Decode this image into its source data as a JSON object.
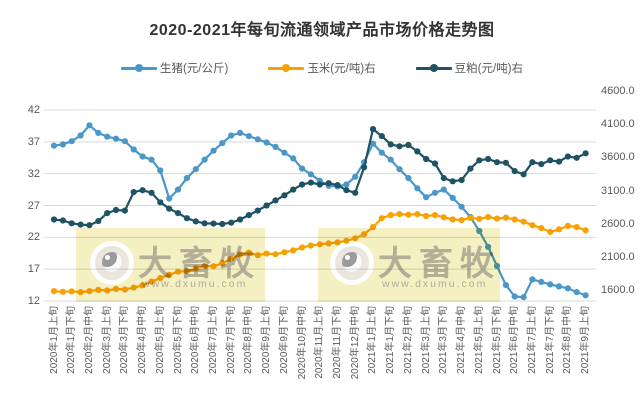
{
  "title": "2020-2021年每旬流通领域产品市场价格走势图",
  "watermark": {
    "text": "大畜牧",
    "url": "www.dxumu.com"
  },
  "chart_data": {
    "type": "line",
    "title": "2020-2021年每旬流通领域产品市场价格走势图",
    "grid": true,
    "legend_position": "top",
    "points_per_label": 2,
    "x_tick_labels": [
      "2020年1月上旬",
      "2020年1月下旬",
      "2020年2月中旬",
      "2020年3月上旬",
      "2020年3月下旬",
      "2020年4月中旬",
      "2020年5月上旬",
      "2020年5月下旬",
      "2020年6月中旬",
      "2020年7月上旬",
      "2020年7月下旬",
      "2020年8月中旬",
      "2020年9月上旬",
      "2020年9月下旬",
      "2020年10月中旬",
      "2020年11月上旬",
      "2020年11月下旬",
      "2020年12月中旬",
      "2021年1月上旬",
      "2021年1月下旬",
      "2021年2月中旬",
      "2021年3月上旬",
      "2021年3月下旬",
      "2021年4月中旬",
      "2021年5月上旬",
      "2021年5月下旬",
      "2021年6月中旬",
      "2021年7月上旬",
      "2021年7月下旬",
      "2021年8月中旬",
      "2021年9月上旬"
    ],
    "left_axis": {
      "range": [
        12,
        42
      ],
      "ticks": [
        "42",
        "37",
        "32",
        "27",
        "22",
        "17",
        "12"
      ]
    },
    "right_axis": {
      "range": [
        1600,
        4600
      ],
      "ticks": [
        "4600.0",
        "4100.0",
        "3600.0",
        "3100.0",
        "2600.0",
        "2100.0",
        "1600.0"
      ]
    },
    "series": [
      {
        "name": "生猪(元/公斤)",
        "axis": "left",
        "color": "#4a97c8",
        "values": [
          36.4,
          36.6,
          37.1,
          38.0,
          39.6,
          38.4,
          37.8,
          37.5,
          37.1,
          35.8,
          34.7,
          34.2,
          32.5,
          28.1,
          29.5,
          31.3,
          32.7,
          34.2,
          35.6,
          36.8,
          38.0,
          38.4,
          37.9,
          37.4,
          36.9,
          36.2,
          35.3,
          34.4,
          32.8,
          31.9,
          30.9,
          30.1,
          30.0,
          30.3,
          31.5,
          33.8,
          36.7,
          35.3,
          34.2,
          32.7,
          31.3,
          29.7,
          28.3,
          29.0,
          29.5,
          28.2,
          26.8,
          25.2,
          23.0,
          20.5,
          17.5,
          14.5,
          12.7,
          12.6,
          15.4,
          15.0,
          14.6,
          14.3,
          14.0,
          13.4,
          12.9
        ]
      },
      {
        "name": "玉米(元/吨)右",
        "axis": "right",
        "color": "#f8a100",
        "values": [
          1755,
          1745,
          1750,
          1740,
          1755,
          1775,
          1765,
          1790,
          1780,
          1810,
          1845,
          1905,
          1960,
          2010,
          2060,
          2070,
          2110,
          2150,
          2145,
          2195,
          2260,
          2330,
          2360,
          2320,
          2345,
          2335,
          2365,
          2395,
          2440,
          2470,
          2490,
          2505,
          2520,
          2545,
          2585,
          2650,
          2760,
          2900,
          2950,
          2965,
          2955,
          2965,
          2935,
          2950,
          2915,
          2880,
          2870,
          2905,
          2890,
          2920,
          2895,
          2910,
          2880,
          2845,
          2790,
          2745,
          2685,
          2725,
          2780,
          2760,
          2710
        ]
      },
      {
        "name": "豆粕(元/吨)右",
        "axis": "right",
        "color": "#1f5263",
        "values": [
          2880,
          2865,
          2820,
          2800,
          2790,
          2855,
          2980,
          3030,
          3020,
          3310,
          3340,
          3300,
          3150,
          3050,
          2980,
          2900,
          2850,
          2820,
          2815,
          2810,
          2830,
          2880,
          2950,
          3020,
          3100,
          3180,
          3260,
          3350,
          3430,
          3460,
          3430,
          3450,
          3420,
          3340,
          3300,
          3700,
          4300,
          4190,
          4060,
          4030,
          4050,
          3950,
          3830,
          3760,
          3530,
          3480,
          3500,
          3680,
          3810,
          3830,
          3780,
          3770,
          3640,
          3590,
          3780,
          3750,
          3810,
          3790,
          3870,
          3850,
          3920
        ]
      }
    ]
  }
}
